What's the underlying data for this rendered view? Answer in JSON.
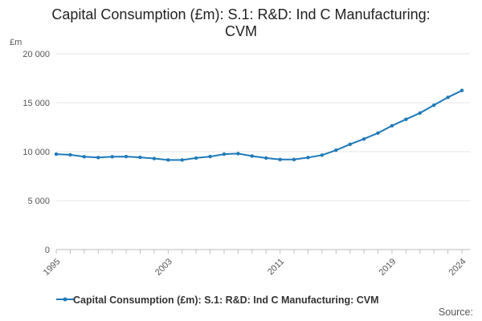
{
  "chart_data": {
    "type": "line",
    "title_lines": [
      "Capital Consumption (£m): S.1: R&D: Ind C Manufacturing:",
      "CVM"
    ],
    "ylabel": "£m",
    "ylim": [
      0,
      20000
    ],
    "yticks": [
      0,
      5000,
      10000,
      15000,
      20000
    ],
    "ytick_labels": [
      "0",
      "5 000",
      "10 000",
      "15 000",
      "20 000"
    ],
    "xlim": [
      1995,
      2024
    ],
    "xticks": [
      1995,
      2003,
      2011,
      2019,
      2024
    ],
    "xtick_labels": [
      "1995",
      "2003",
      "2011",
      "2019",
      "2024"
    ],
    "grid": true,
    "legend_position": "bottom",
    "series_color": "#1f7ab8",
    "source_label": "Source:",
    "series": [
      {
        "name": "Capital Consumption (£m): S.1: R&D: Ind C Manufacturing: CVM",
        "x": [
          1995,
          1996,
          1997,
          1998,
          1999,
          2000,
          2001,
          2002,
          2003,
          2004,
          2005,
          2006,
          2007,
          2008,
          2009,
          2010,
          2011,
          2012,
          2013,
          2014,
          2015,
          2016,
          2017,
          2018,
          2019,
          2020,
          2021,
          2022,
          2023,
          2024
        ],
        "values": [
          9750,
          9680,
          9480,
          9400,
          9480,
          9500,
          9420,
          9300,
          9150,
          9150,
          9350,
          9500,
          9750,
          9800,
          9550,
          9350,
          9200,
          9200,
          9400,
          9650,
          10150,
          10750,
          11300,
          11900,
          12650,
          13300,
          13950,
          14750,
          15550,
          16250
        ]
      }
    ]
  }
}
